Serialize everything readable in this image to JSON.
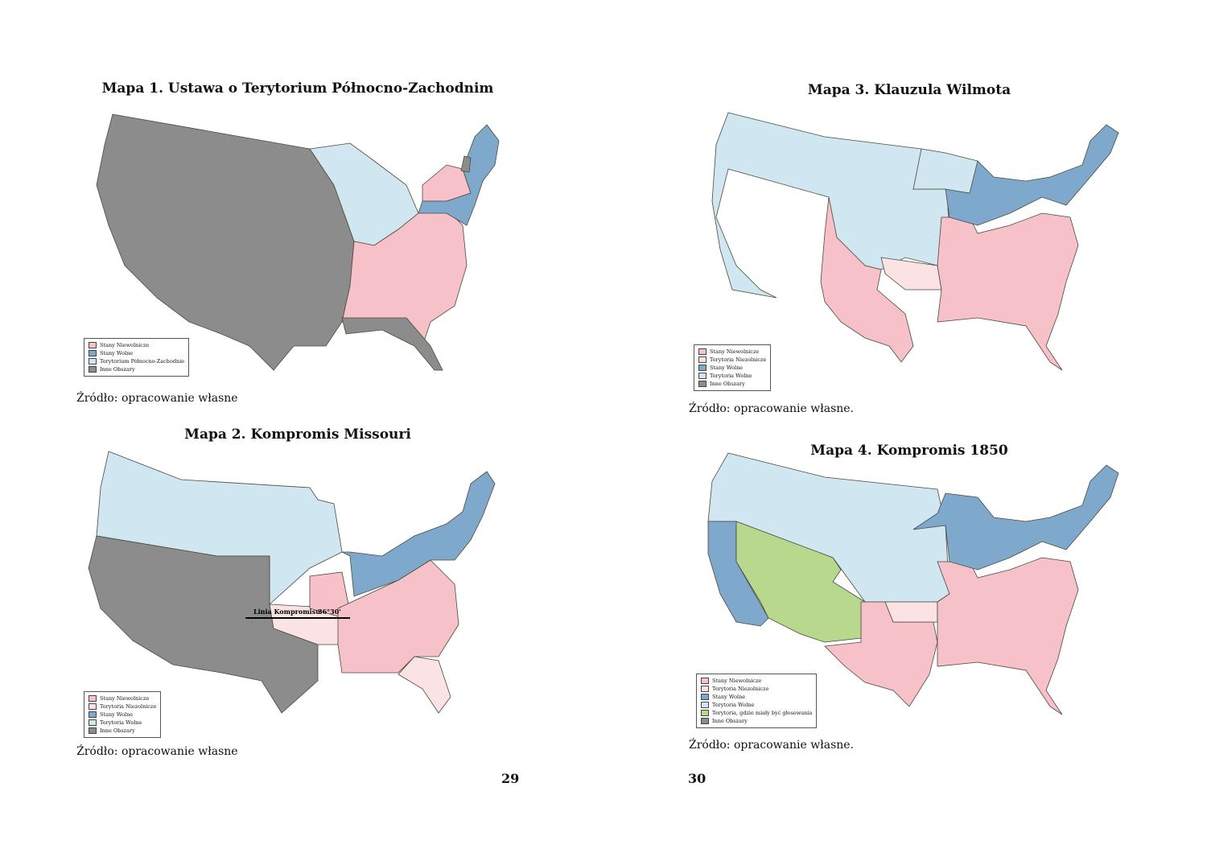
{
  "colors": {
    "slave_state": "#f6c1c8",
    "slave_territory": "#fbe3e5",
    "free_state": "#7fa9cc",
    "free_territory": "#d0e6f0",
    "northwest_territory": "#d0e6f0",
    "vote_territory": "#b8d88e",
    "other_areas": "#8c8c8c"
  },
  "maps": [
    {
      "title": "Mapa 1. Ustawa o Terytorium Północno-Zachodnim",
      "source": "Źródło: opracowanie własne",
      "legend": [
        {
          "label": "Stany Niewolnicze",
          "color_key": "slave_state"
        },
        {
          "label": "Stany Wolne",
          "color_key": "free_state"
        },
        {
          "label": "Terytorium Północno-Zachodnie",
          "color_key": "northwest_territory"
        },
        {
          "label": "Inne Obszary",
          "color_key": "other_areas"
        }
      ]
    },
    {
      "title": "Mapa 2. Kompromis Missouri",
      "source": "Źródło: opracowanie własne",
      "line_label": "Linia Kompromisu",
      "line_degree": "36°30'",
      "legend": [
        {
          "label": "Stany Niewolnicze",
          "color_key": "slave_state"
        },
        {
          "label": "Terytoria Niezolnicze",
          "color_key": "slave_territory"
        },
        {
          "label": "Stany Wolne",
          "color_key": "free_state"
        },
        {
          "label": "Terytoria Wolne",
          "color_key": "free_territory"
        },
        {
          "label": "Inne Obszary",
          "color_key": "other_areas"
        }
      ]
    },
    {
      "title": "Mapa 3. Klauzula Wilmota",
      "source": "Źródło: opracowanie własne.",
      "legend": [
        {
          "label": "Stany Niewolnicze",
          "color_key": "slave_state"
        },
        {
          "label": "Terytoria Niezolnicze",
          "color_key": "slave_territory"
        },
        {
          "label": "Stany Wolne",
          "color_key": "free_state"
        },
        {
          "label": "Terytoria Wolne",
          "color_key": "free_territory"
        },
        {
          "label": "Inne Obszary",
          "color_key": "other_areas"
        }
      ]
    },
    {
      "title": "Mapa 4. Kompromis 1850",
      "source": "Źródło: opracowanie własne.",
      "legend": [
        {
          "label": "Stany Niewolnicze",
          "color_key": "slave_state"
        },
        {
          "label": "Terytoria Niezolnicze",
          "color_key": "slave_territory"
        },
        {
          "label": "Stany Wolne",
          "color_key": "free_state"
        },
        {
          "label": "Terytoria Wolne",
          "color_key": "free_territory"
        },
        {
          "label": "Terytoria, gdzie miały być głosowania",
          "color_key": "vote_territory"
        },
        {
          "label": "Inne Obszary",
          "color_key": "other_areas"
        }
      ]
    }
  ],
  "page_numbers": {
    "left": "29",
    "right": "30"
  }
}
